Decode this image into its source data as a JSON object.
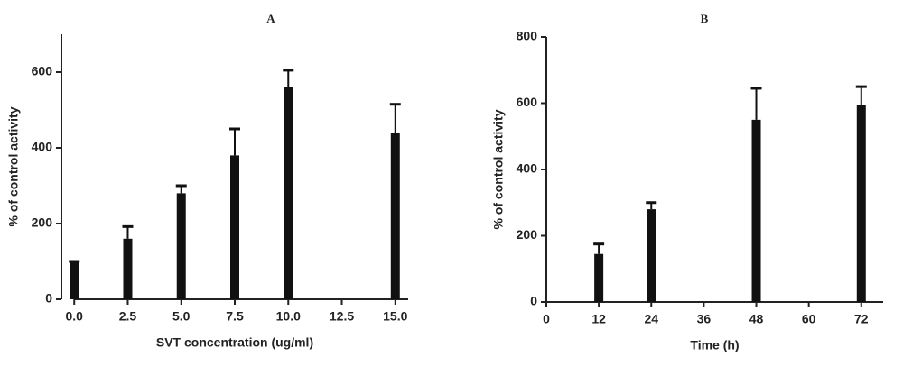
{
  "chart_data": [
    {
      "type": "bar",
      "title": "A",
      "xlabel": "SVT concentration (ug/ml)",
      "ylabel": "% of control activity",
      "x": [
        0,
        2.5,
        5,
        7.5,
        10,
        15
      ],
      "values": [
        100,
        160,
        280,
        380,
        560,
        440
      ],
      "errors": [
        0,
        32,
        20,
        70,
        45,
        75
      ],
      "color": "#111111",
      "xlim": [
        -0.6,
        15.6
      ],
      "ylim": [
        0,
        700
      ],
      "xticks": [
        {
          "value": 0,
          "label": "0.0"
        },
        2.5,
        {
          "value": 5,
          "label": "5.0"
        },
        7.5,
        {
          "value": 10,
          "label": "10.0"
        },
        12.5,
        {
          "value": 15,
          "label": "15.0"
        }
      ],
      "yticks": [
        0,
        200,
        400,
        600
      ]
    },
    {
      "type": "bar",
      "title": "B",
      "xlabel": "Time (h)",
      "ylabel": "% of control activity",
      "x": [
        12,
        24,
        48,
        72
      ],
      "values": [
        145,
        280,
        550,
        595
      ],
      "errors": [
        30,
        20,
        95,
        55
      ],
      "color": "#111111",
      "xlim": [
        0,
        77
      ],
      "ylim": [
        0,
        800
      ],
      "xticks": [
        0,
        12,
        24,
        36,
        48,
        60,
        72
      ],
      "yticks": [
        0,
        200,
        400,
        600,
        800
      ]
    }
  ]
}
